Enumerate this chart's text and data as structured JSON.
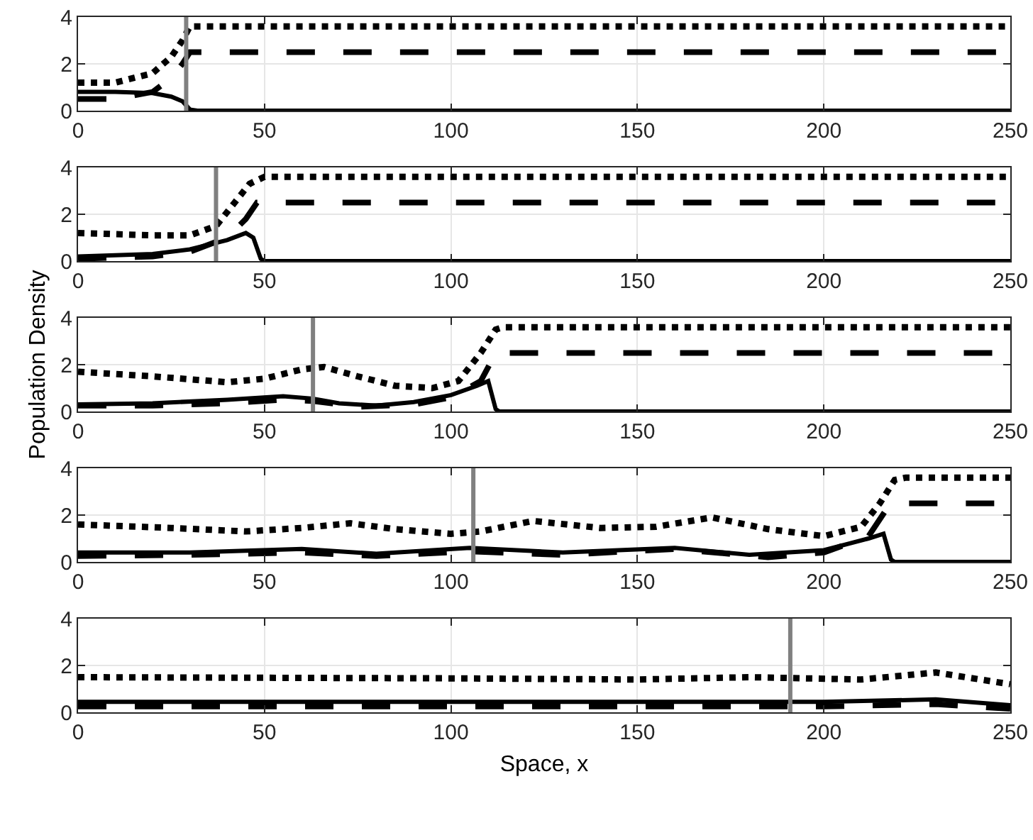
{
  "chart_data": [
    {
      "type": "line",
      "xlim": [
        0,
        250
      ],
      "ylim": [
        0,
        4
      ],
      "xticks": [
        0,
        50,
        100,
        150,
        200,
        250
      ],
      "yticks": [
        0,
        2,
        4
      ],
      "grid": true,
      "ref_lines": [
        {
          "axis": "x",
          "value": 29,
          "color": "#808080"
        }
      ],
      "series": [
        {
          "color": "#000000",
          "line_style": "solid",
          "x": [
            0,
            10,
            20,
            25,
            28,
            30,
            32,
            250
          ],
          "values": [
            0.8,
            0.8,
            0.75,
            0.6,
            0.4,
            0.05,
            0,
            0
          ]
        },
        {
          "color": "#000000",
          "line_style": "dashed",
          "x": [
            0,
            10,
            20,
            25,
            28,
            30,
            250
          ],
          "values": [
            0.5,
            0.5,
            0.8,
            1.4,
            2.0,
            2.5,
            2.5
          ]
        },
        {
          "color": "#000000",
          "line_style": "dotted",
          "x": [
            0,
            10,
            20,
            25,
            28,
            30,
            250
          ],
          "values": [
            1.2,
            1.2,
            1.6,
            2.3,
            3.0,
            3.6,
            3.6
          ]
        }
      ]
    },
    {
      "type": "line",
      "xlim": [
        0,
        250
      ],
      "ylim": [
        0,
        4
      ],
      "xticks": [
        0,
        50,
        100,
        150,
        200,
        250
      ],
      "yticks": [
        0,
        2,
        4
      ],
      "grid": true,
      "ref_lines": [
        {
          "axis": "x",
          "value": 37,
          "color": "#808080"
        }
      ],
      "series": [
        {
          "color": "#000000",
          "line_style": "solid",
          "x": [
            0,
            20,
            30,
            40,
            45,
            47,
            49,
            50,
            250
          ],
          "values": [
            0.2,
            0.3,
            0.5,
            0.9,
            1.2,
            1.0,
            0.1,
            0,
            0
          ]
        },
        {
          "color": "#000000",
          "line_style": "dashed",
          "x": [
            0,
            20,
            30,
            40,
            45,
            48,
            250
          ],
          "values": [
            0.1,
            0.2,
            0.4,
            1.0,
            1.8,
            2.5,
            2.5
          ]
        },
        {
          "color": "#000000",
          "line_style": "dotted",
          "x": [
            0,
            20,
            30,
            37,
            42,
            46,
            50,
            250
          ],
          "values": [
            1.2,
            1.1,
            1.1,
            1.5,
            2.5,
            3.3,
            3.6,
            3.6
          ]
        }
      ]
    },
    {
      "type": "line",
      "ylabel": "Population Density",
      "xlim": [
        0,
        250
      ],
      "ylim": [
        0,
        4
      ],
      "xticks": [
        0,
        50,
        100,
        150,
        200,
        250
      ],
      "yticks": [
        0,
        2,
        4
      ],
      "grid": true,
      "ref_lines": [
        {
          "axis": "x",
          "value": 63,
          "color": "#808080"
        }
      ],
      "series": [
        {
          "color": "#000000",
          "line_style": "solid",
          "x": [
            0,
            20,
            40,
            55,
            63,
            70,
            80,
            90,
            100,
            107,
            110,
            112,
            113,
            250
          ],
          "values": [
            0.3,
            0.35,
            0.5,
            0.65,
            0.55,
            0.35,
            0.25,
            0.4,
            0.7,
            1.1,
            1.3,
            0.1,
            0,
            0
          ]
        },
        {
          "color": "#000000",
          "line_style": "dashed",
          "x": [
            0,
            20,
            40,
            55,
            63,
            75,
            90,
            100,
            108,
            112,
            250
          ],
          "values": [
            0.25,
            0.25,
            0.35,
            0.5,
            0.45,
            0.2,
            0.3,
            0.6,
            1.3,
            2.5,
            2.5
          ]
        },
        {
          "color": "#000000",
          "line_style": "dotted",
          "x": [
            0,
            20,
            40,
            50,
            60,
            66,
            75,
            85,
            95,
            102,
            108,
            112,
            114,
            250
          ],
          "values": [
            1.7,
            1.5,
            1.25,
            1.4,
            1.8,
            1.9,
            1.5,
            1.1,
            1.0,
            1.3,
            2.5,
            3.5,
            3.6,
            3.6
          ]
        }
      ]
    },
    {
      "type": "line",
      "xlim": [
        0,
        250
      ],
      "ylim": [
        0,
        4
      ],
      "xticks": [
        0,
        50,
        100,
        150,
        200,
        250
      ],
      "yticks": [
        0,
        2,
        4
      ],
      "grid": true,
      "ref_lines": [
        {
          "axis": "x",
          "value": 106,
          "color": "#808080"
        }
      ],
      "series": [
        {
          "color": "#000000",
          "line_style": "solid",
          "x": [
            0,
            30,
            60,
            80,
            105,
            130,
            160,
            180,
            200,
            212,
            216,
            218,
            219,
            250
          ],
          "values": [
            0.4,
            0.4,
            0.55,
            0.35,
            0.6,
            0.4,
            0.6,
            0.3,
            0.5,
            1.0,
            1.2,
            0.1,
            0,
            0
          ]
        },
        {
          "color": "#000000",
          "line_style": "dashed",
          "x": [
            0,
            30,
            60,
            80,
            105,
            130,
            160,
            185,
            200,
            212,
            217,
            219,
            250
          ],
          "values": [
            0.25,
            0.3,
            0.4,
            0.25,
            0.45,
            0.3,
            0.55,
            0.2,
            0.4,
            1.1,
            2.3,
            2.5,
            2.5
          ]
        },
        {
          "color": "#000000",
          "line_style": "dotted",
          "x": [
            0,
            25,
            45,
            60,
            73,
            85,
            100,
            108,
            122,
            140,
            155,
            170,
            185,
            200,
            210,
            215,
            219,
            222,
            250
          ],
          "values": [
            1.6,
            1.45,
            1.3,
            1.45,
            1.65,
            1.4,
            1.2,
            1.3,
            1.75,
            1.45,
            1.5,
            1.9,
            1.4,
            1.1,
            1.5,
            2.5,
            3.5,
            3.6,
            3.6
          ]
        }
      ]
    },
    {
      "type": "line",
      "xlabel": "Space, x",
      "xlim": [
        0,
        250
      ],
      "ylim": [
        0,
        4
      ],
      "xticks": [
        0,
        50,
        100,
        150,
        200,
        250
      ],
      "yticks": [
        0,
        2,
        4
      ],
      "grid": true,
      "ref_lines": [
        {
          "axis": "x",
          "value": 191,
          "color": "#808080"
        }
      ],
      "series": [
        {
          "color": "#000000",
          "line_style": "solid",
          "x": [
            0,
            100,
            200,
            230,
            250
          ],
          "values": [
            0.45,
            0.45,
            0.45,
            0.55,
            0.3
          ]
        },
        {
          "color": "#000000",
          "line_style": "dashed",
          "x": [
            0,
            100,
            200,
            230,
            250
          ],
          "values": [
            0.25,
            0.25,
            0.25,
            0.35,
            0.15
          ]
        },
        {
          "color": "#000000",
          "line_style": "dotted",
          "x": [
            0,
            100,
            150,
            180,
            210,
            230,
            250
          ],
          "values": [
            1.5,
            1.45,
            1.4,
            1.5,
            1.4,
            1.7,
            1.2
          ]
        }
      ]
    }
  ]
}
